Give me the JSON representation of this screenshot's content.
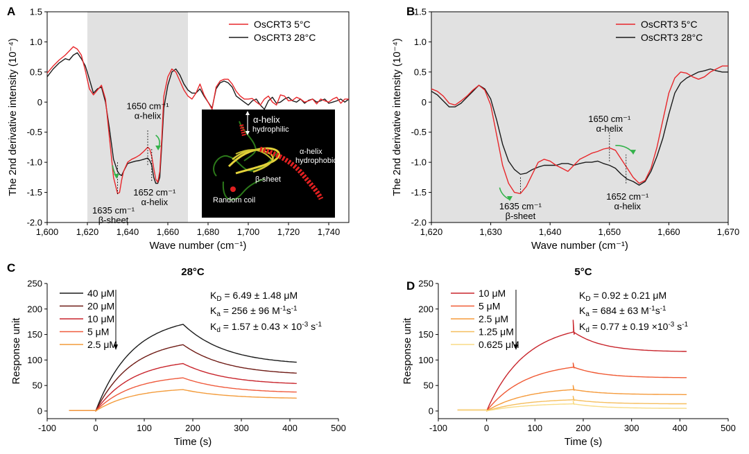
{
  "chart_data": [
    {
      "panel": "A",
      "type": "line",
      "xlabel": "Wave number (cm⁻¹)",
      "ylabel": "The 2nd derivative intensity (10⁻⁴)",
      "xlim": [
        1600,
        1750
      ],
      "ylim": [
        -2.0,
        1.5
      ],
      "xticks": [
        1600,
        1620,
        1640,
        1660,
        1680,
        1700,
        1720,
        1740
      ],
      "xtick_labels": [
        "1,600",
        "1,620",
        "1,640",
        "1,660",
        "1,680",
        "1,700",
        "1,720",
        "1,740"
      ],
      "yticks": [
        -2.0,
        -1.5,
        -1.0,
        -0.5,
        0,
        0.5,
        1.0,
        1.5
      ],
      "ytick_labels": [
        "-2.0",
        "-1.5",
        "-1.0",
        "-0.5",
        "0",
        "0.5",
        "1.0",
        "1.5"
      ],
      "shaded_region": [
        1620,
        1670
      ],
      "legend_position": "top-right",
      "series": [
        {
          "name": "OsCRT3  5°C",
          "color": "#e8262a",
          "x": [
            1600,
            1603,
            1606,
            1609,
            1611,
            1613,
            1615,
            1617,
            1619,
            1621,
            1623,
            1625,
            1627,
            1629,
            1631,
            1633,
            1635,
            1636,
            1637,
            1638,
            1640,
            1642,
            1644,
            1646,
            1648,
            1650,
            1651,
            1652,
            1653,
            1654,
            1655,
            1656,
            1657,
            1658,
            1660,
            1662,
            1664,
            1666,
            1668,
            1670,
            1672,
            1674,
            1676,
            1678,
            1680,
            1682,
            1684,
            1686,
            1688,
            1690,
            1692,
            1694,
            1696,
            1698,
            1700,
            1702,
            1704,
            1706,
            1708,
            1710,
            1712,
            1714,
            1716,
            1718,
            1720,
            1722,
            1724,
            1726,
            1728,
            1730,
            1732,
            1734,
            1736,
            1738,
            1740,
            1742,
            1744,
            1746,
            1748,
            1750
          ],
          "y": [
            0.48,
            0.6,
            0.7,
            0.78,
            0.85,
            0.92,
            0.88,
            0.78,
            0.52,
            0.22,
            0.12,
            0.2,
            0.28,
            0.05,
            -0.6,
            -1.25,
            -1.52,
            -1.5,
            -1.3,
            -1.15,
            -1.0,
            -0.95,
            -0.92,
            -0.88,
            -0.82,
            -0.75,
            -0.78,
            -0.9,
            -1.1,
            -1.28,
            -1.33,
            -1.15,
            -0.6,
            0.1,
            0.42,
            0.55,
            0.5,
            0.35,
            0.2,
            0.1,
            0.05,
            0.15,
            0.3,
            0.12,
            0.0,
            -0.12,
            0.25,
            0.35,
            0.38,
            0.38,
            0.3,
            0.18,
            0.1,
            0.05,
            0.05,
            0.06,
            0.0,
            -0.05,
            0.05,
            0.1,
            0.0,
            -0.05,
            0.12,
            0.1,
            0.02,
            0.03,
            0.08,
            0.05,
            0.0,
            0.02,
            0.05,
            -0.03,
            0.05,
            0.02,
            0.0,
            0.05,
            0.08,
            -0.02,
            0.05,
            0.05
          ]
        },
        {
          "name": "OsCRT3  28°C",
          "color": "#1a1a1a",
          "x": [
            1600,
            1603,
            1606,
            1609,
            1611,
            1613,
            1615,
            1617,
            1619,
            1621,
            1623,
            1625,
            1627,
            1629,
            1631,
            1633,
            1635,
            1636,
            1637,
            1638,
            1640,
            1642,
            1644,
            1646,
            1648,
            1650,
            1651,
            1652,
            1653,
            1654,
            1655,
            1656,
            1657,
            1658,
            1660,
            1662,
            1664,
            1666,
            1668,
            1670,
            1672,
            1674,
            1676,
            1678,
            1680,
            1682,
            1684,
            1686,
            1688,
            1690,
            1692,
            1694,
            1696,
            1698,
            1700,
            1702,
            1704,
            1706,
            1708,
            1710,
            1712,
            1714,
            1716,
            1718,
            1720,
            1722,
            1724,
            1726,
            1728,
            1730,
            1732,
            1734,
            1736,
            1738,
            1740,
            1742,
            1744,
            1746,
            1748,
            1750
          ],
          "y": [
            0.42,
            0.55,
            0.65,
            0.72,
            0.7,
            0.78,
            0.82,
            0.72,
            0.6,
            0.38,
            0.15,
            0.22,
            0.25,
            0.0,
            -0.45,
            -0.95,
            -1.15,
            -1.2,
            -1.22,
            -1.15,
            -1.02,
            -1.0,
            -0.98,
            -0.97,
            -0.95,
            -0.93,
            -0.97,
            -1.05,
            -1.25,
            -1.35,
            -1.35,
            -1.25,
            -0.7,
            -0.1,
            0.28,
            0.5,
            0.55,
            0.45,
            0.3,
            0.2,
            0.15,
            0.15,
            0.22,
            0.1,
            0.0,
            -0.1,
            0.22,
            0.32,
            0.35,
            0.32,
            0.25,
            0.1,
            0.05,
            0.0,
            -0.05,
            0.02,
            0.05,
            -0.05,
            -0.12,
            0.02,
            0.08,
            -0.02,
            0.0,
            0.05,
            0.08,
            0.02,
            0.0,
            0.05,
            -0.02,
            0.03,
            0.05,
            0.0,
            0.02,
            0.05,
            -0.02,
            0.0,
            0.02,
            0.05,
            0.0,
            0.05
          ]
        }
      ],
      "annotations": [
        {
          "text": "1650 cm⁻¹",
          "text2": "α-helix",
          "x": 1650
        },
        {
          "text": "1652 cm⁻¹",
          "text2": "α-helix",
          "x": 1652
        },
        {
          "text": "1635 cm⁻¹",
          "text2": "β-sheet",
          "x": 1635
        }
      ],
      "inset_labels": [
        "α-helix",
        "hydrophilic",
        "α-helix",
        "hydrophobic",
        "β-sheet",
        "Random coil"
      ]
    },
    {
      "panel": "B",
      "type": "line",
      "xlabel": "Wave number (cm⁻¹)",
      "ylabel": "The 2nd derivative intensity (10⁻⁴)",
      "xlim": [
        1620,
        1670
      ],
      "ylim": [
        -2.0,
        1.5
      ],
      "xticks": [
        1620,
        1630,
        1640,
        1650,
        1660,
        1670
      ],
      "xtick_labels": [
        "1,620",
        "1,630",
        "1,640",
        "1,650",
        "1,660",
        "1,670"
      ],
      "yticks": [
        -2.0,
        -1.5,
        -1.0,
        -0.5,
        0,
        0.5,
        1.0,
        1.5
      ],
      "ytick_labels": [
        "-2.0",
        "-1.5",
        "-1.0",
        "-0.5",
        "0",
        "0.5",
        "1.0",
        "1.5"
      ],
      "shaded_region": [
        1620,
        1670
      ],
      "legend_position": "top-right",
      "series": [
        {
          "name": "OsCRT3  5°C",
          "color": "#e8262a",
          "x": [
            1620,
            1621,
            1622,
            1623,
            1624,
            1625,
            1626,
            1627,
            1628,
            1629,
            1630,
            1631,
            1632,
            1633,
            1634,
            1635,
            1636,
            1637,
            1638,
            1639,
            1640,
            1641,
            1642,
            1643,
            1644,
            1645,
            1646,
            1647,
            1648,
            1649,
            1650,
            1651,
            1652,
            1653,
            1654,
            1655,
            1656,
            1657,
            1658,
            1659,
            1660,
            1661,
            1662,
            1663,
            1664,
            1665,
            1666,
            1667,
            1668,
            1669,
            1670
          ],
          "y": [
            0.22,
            0.18,
            0.1,
            -0.02,
            -0.05,
            0.02,
            0.1,
            0.2,
            0.28,
            0.2,
            -0.05,
            -0.55,
            -1.05,
            -1.35,
            -1.5,
            -1.52,
            -1.4,
            -1.2,
            -1.0,
            -0.95,
            -0.98,
            -1.05,
            -1.1,
            -1.15,
            -1.05,
            -0.95,
            -0.9,
            -0.85,
            -0.82,
            -0.78,
            -0.76,
            -0.8,
            -0.95,
            -1.1,
            -1.25,
            -1.35,
            -1.3,
            -1.1,
            -0.75,
            -0.3,
            0.15,
            0.4,
            0.5,
            0.48,
            0.42,
            0.38,
            0.42,
            0.5,
            0.55,
            0.6,
            0.6
          ]
        },
        {
          "name": "OsCRT3  28°C",
          "color": "#1a1a1a",
          "x": [
            1620,
            1621,
            1622,
            1623,
            1624,
            1625,
            1626,
            1627,
            1628,
            1629,
            1630,
            1631,
            1632,
            1633,
            1634,
            1635,
            1636,
            1637,
            1638,
            1639,
            1640,
            1641,
            1642,
            1643,
            1644,
            1645,
            1646,
            1647,
            1648,
            1649,
            1650,
            1651,
            1652,
            1653,
            1654,
            1655,
            1656,
            1657,
            1658,
            1659,
            1660,
            1661,
            1662,
            1663,
            1664,
            1665,
            1666,
            1667,
            1668,
            1669,
            1670
          ],
          "y": [
            0.18,
            0.12,
            0.02,
            -0.08,
            -0.08,
            -0.02,
            0.08,
            0.18,
            0.28,
            0.22,
            0.05,
            -0.3,
            -0.7,
            -0.98,
            -1.12,
            -1.2,
            -1.18,
            -1.12,
            -1.08,
            -1.05,
            -1.05,
            -1.05,
            -1.02,
            -1.02,
            -1.05,
            -1.02,
            -1.0,
            -1.0,
            -0.98,
            -1.02,
            -1.05,
            -1.1,
            -1.2,
            -1.28,
            -1.32,
            -1.38,
            -1.32,
            -1.15,
            -0.9,
            -0.6,
            -0.2,
            0.15,
            0.32,
            0.4,
            0.45,
            0.5,
            0.52,
            0.55,
            0.52,
            0.5,
            0.5
          ]
        }
      ],
      "annotations": [
        {
          "text": "1650 cm⁻¹",
          "text2": "α-helix",
          "x": 1650
        },
        {
          "text": "1652 cm⁻¹",
          "text2": "α-helix",
          "x": 1652.8
        },
        {
          "text": "1635 cm⁻¹",
          "text2": "β-sheet",
          "x": 1635
        }
      ]
    },
    {
      "panel": "C",
      "type": "line",
      "title": "28°C",
      "xlabel": "Time (s)",
      "ylabel": "Response unit",
      "xlim": [
        -100,
        500
      ],
      "ylim": [
        -15,
        250
      ],
      "xticks": [
        -100,
        0,
        100,
        200,
        300,
        400,
        500
      ],
      "xtick_labels": [
        "-100",
        "0",
        "100",
        "200",
        "300",
        "400",
        "500"
      ],
      "yticks": [
        0,
        50,
        100,
        150,
        200,
        250
      ],
      "ytick_labels": [
        "0",
        "50",
        "100",
        "150",
        "200",
        "250"
      ],
      "legend_position": "top-left",
      "kinetics": [
        "K",
        "D",
        " = 6.49 ± 1.48 μM",
        "K",
        "a",
        " = 256 ± 96 M",
        "-1",
        "s",
        "-1",
        "K",
        "d",
        " = 1.57 ± 0.43 × 10",
        "-3",
        " s",
        "-1"
      ],
      "series": [
        {
          "name": "40 μM",
          "color": "#1a1a1a",
          "plateau": 170,
          "end": 90,
          "rise_tau": 75,
          "decay_tau": 90
        },
        {
          "name": "20 μM",
          "color": "#6e1a14",
          "plateau": 130,
          "end": 70,
          "rise_tau": 75,
          "decay_tau": 90
        },
        {
          "name": "10 μM",
          "color": "#c8242b",
          "plateau": 93,
          "end": 51,
          "rise_tau": 75,
          "decay_tau": 90
        },
        {
          "name": "5 μM",
          "color": "#ef5a3c",
          "plateau": 65,
          "end": 35,
          "rise_tau": 75,
          "decay_tau": 90
        },
        {
          "name": "2.5 μM",
          "color": "#f39b3a",
          "plateau": 42,
          "end": 24,
          "rise_tau": 75,
          "decay_tau": 90
        }
      ],
      "baseline": {
        "start": -55,
        "value": 1
      }
    },
    {
      "panel": "D",
      "type": "line",
      "title": "5°C",
      "xlabel": "Time (s)",
      "ylabel": "Response unit",
      "xlim": [
        -100,
        500
      ],
      "ylim": [
        -15,
        250
      ],
      "xticks": [
        -100,
        0,
        100,
        200,
        300,
        400,
        500
      ],
      "xtick_labels": [
        "-100",
        "0",
        "100",
        "200",
        "300",
        "400",
        "500"
      ],
      "yticks": [
        0,
        50,
        100,
        150,
        200,
        250
      ],
      "ytick_labels": [
        "0",
        "50",
        "100",
        "150",
        "200",
        "250"
      ],
      "legend_position": "top-left",
      "kinetics": [
        "K",
        "D",
        " = 0.92 ± 0.21 μM",
        "K",
        "a",
        " = 684 ± 63 M",
        "-1",
        "s",
        "-1",
        "K",
        "d",
        " = 0.77 ± 0.19 ×10",
        "-3",
        " s",
        "-1"
      ],
      "series": [
        {
          "name": "10 μM",
          "color": "#c8242b",
          "plateau": 155,
          "end": 116,
          "rise_tau": 80,
          "decay_tau": 60,
          "spike": 23
        },
        {
          "name": "5 μM",
          "color": "#f05a34",
          "plateau": 86,
          "end": 65,
          "rise_tau": 80,
          "decay_tau": 60,
          "spike": 8
        },
        {
          "name": "2.5 μM",
          "color": "#f59a3a",
          "plateau": 42,
          "end": 32,
          "rise_tau": 80,
          "decay_tau": 60,
          "spike": 8
        },
        {
          "name": "1.25 μM",
          "color": "#f5be5e",
          "plateau": 22,
          "end": 14,
          "rise_tau": 80,
          "decay_tau": 60,
          "spike": 7
        },
        {
          "name": "0.625 μM",
          "color": "#f8dc86",
          "plateau": 14,
          "end": 5,
          "rise_tau": 80,
          "decay_tau": 60,
          "spike": 5
        }
      ],
      "baseline": {
        "start": -60,
        "value": 2
      }
    }
  ],
  "panel_labels": [
    "A",
    "B",
    "C",
    "D"
  ]
}
